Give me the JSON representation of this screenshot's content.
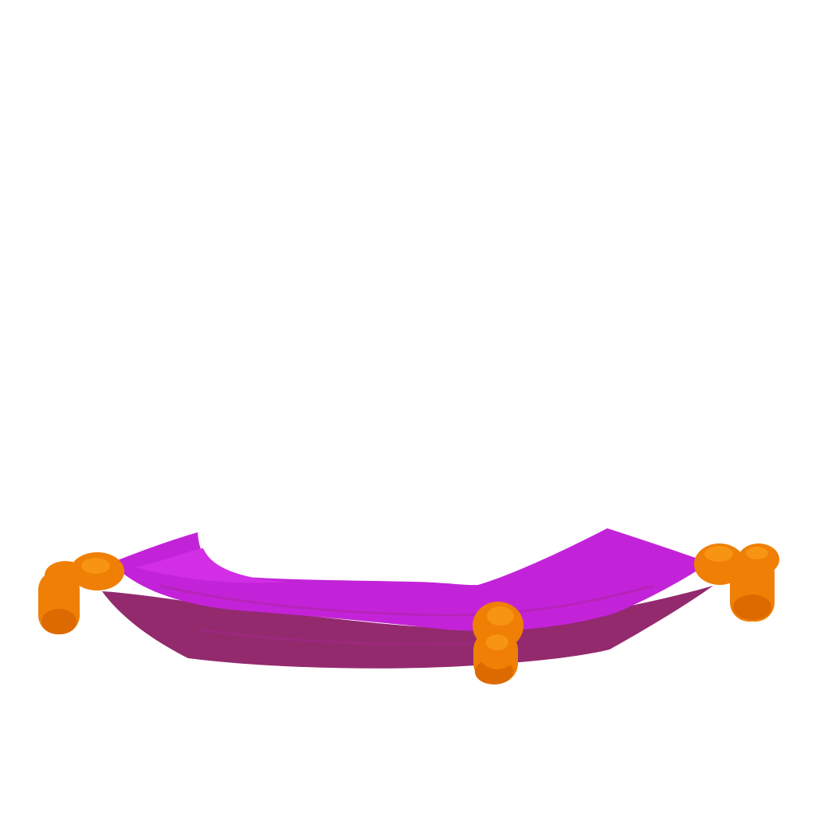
{
  "scene": {
    "subject": "magic-carpet",
    "colors": {
      "background": "#ffffff",
      "carpet_top": "#c323d8",
      "carpet_top_light": "#d12ee6",
      "carpet_side": "#932a6e",
      "carpet_side_dark": "#7d2160",
      "carpet_crease": "#a72592",
      "tassel": "#f07f05",
      "tassel_light": "#f79414",
      "tassel_shadow": "#dc6a00"
    }
  }
}
